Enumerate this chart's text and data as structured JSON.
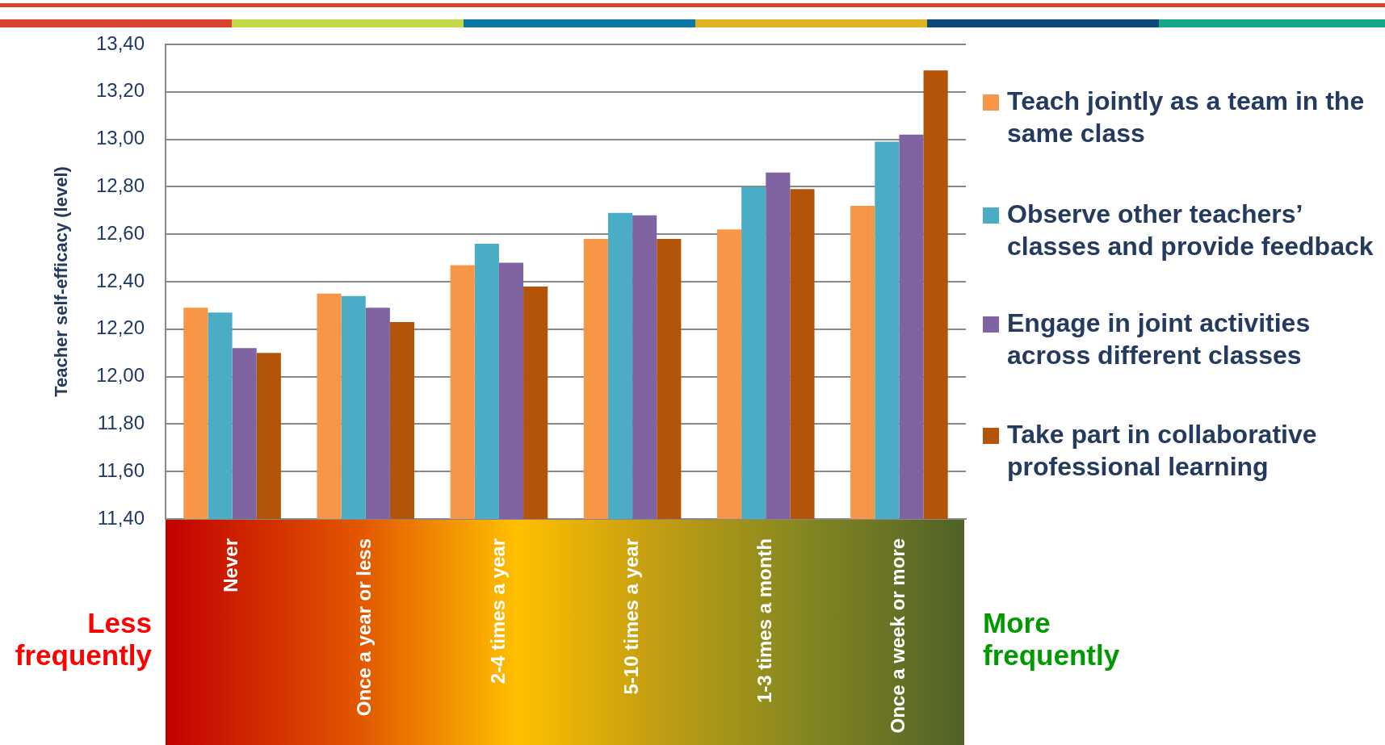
{
  "chart_data": {
    "type": "bar",
    "ylabel": "Teacher self-efficacy (level)",
    "categories": [
      "Never",
      "Once a year or less",
      "2-4 times a year",
      "5-10 times a year",
      "1-3 times a month",
      "Once a week or more"
    ],
    "series": [
      {
        "name": "Teach jointly as a team in the same class",
        "color": "#f79646",
        "values": [
          12.29,
          12.35,
          12.47,
          12.58,
          12.62,
          12.72
        ]
      },
      {
        "name": "Observe other teachers’ classes and provide feedback",
        "color": "#4bacc6",
        "values": [
          12.27,
          12.34,
          12.56,
          12.69,
          12.8,
          12.99
        ]
      },
      {
        "name": "Engage in joint activities across different classes",
        "color": "#8064a2",
        "values": [
          12.12,
          12.29,
          12.48,
          12.68,
          12.86,
          13.02
        ]
      },
      {
        "name": "Take part in collaborative professional learning",
        "color": "#b45408",
        "values": [
          12.1,
          12.23,
          12.38,
          12.58,
          12.79,
          13.29
        ]
      }
    ],
    "ylim": [
      11.4,
      13.4
    ],
    "yticks": [
      {
        "value": 11.4,
        "label": "11,40"
      },
      {
        "value": 11.6,
        "label": "11,60"
      },
      {
        "value": 11.8,
        "label": "11,80"
      },
      {
        "value": 12.0,
        "label": "12,00"
      },
      {
        "value": 12.2,
        "label": "12,20"
      },
      {
        "value": 12.4,
        "label": "12,40"
      },
      {
        "value": 12.6,
        "label": "12,60"
      },
      {
        "value": 12.8,
        "label": "12,80"
      },
      {
        "value": 13.0,
        "label": "13,00"
      },
      {
        "value": 13.2,
        "label": "13,20"
      },
      {
        "value": 13.4,
        "label": "13,40"
      }
    ],
    "grid": "y",
    "legend": "right",
    "annotations": [
      "Less frequently",
      "More frequently"
    ]
  }
}
